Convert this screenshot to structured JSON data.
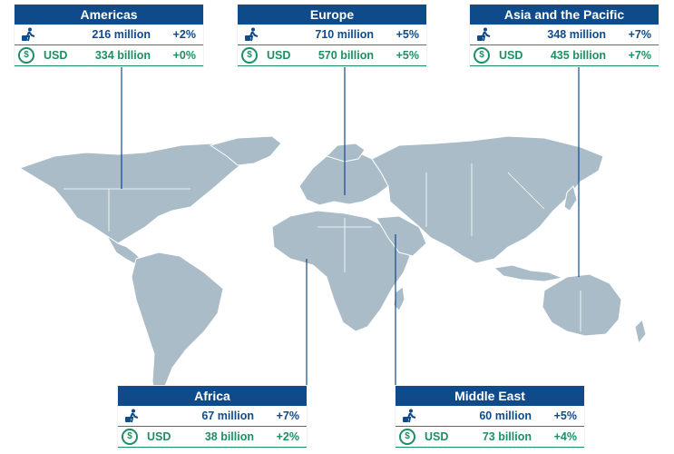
{
  "colors": {
    "brand": "#0f4a8a",
    "receipts_green": "#1e8f63",
    "land": "#a9bcc8"
  },
  "icons": {
    "arrivals": "traveler-with-suitcase-icon",
    "receipts": "dollar-coin-icon"
  },
  "regions": [
    {
      "id": "americas",
      "title": "Americas",
      "arrivals": "216 million",
      "arrivals_change": "+2%",
      "currency": "USD",
      "receipts": "334 billion",
      "receipts_change": "+0%"
    },
    {
      "id": "europe",
      "title": "Europe",
      "arrivals": "710 million",
      "arrivals_change": "+5%",
      "currency": "USD",
      "receipts": "570 billion",
      "receipts_change": "+5%"
    },
    {
      "id": "asia",
      "title": "Asia and the Pacific",
      "arrivals": "348 million",
      "arrivals_change": "+7%",
      "currency": "USD",
      "receipts": "435 billion",
      "receipts_change": "+7%"
    },
    {
      "id": "africa",
      "title": "Africa",
      "arrivals": "67 million",
      "arrivals_change": "+7%",
      "currency": "USD",
      "receipts": "38 billion",
      "receipts_change": "+2%"
    },
    {
      "id": "mideast",
      "title": "Middle East",
      "arrivals": "60 million",
      "arrivals_change": "+5%",
      "currency": "USD",
      "receipts": "73 billion",
      "receipts_change": "+4%"
    }
  ]
}
